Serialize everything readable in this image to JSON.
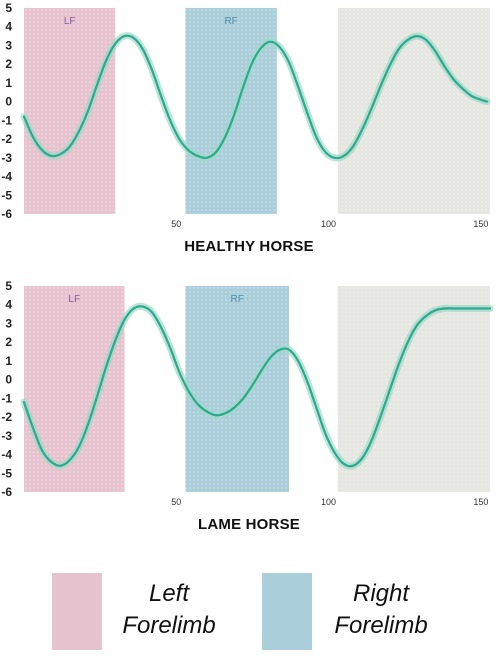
{
  "colors": {
    "left_forelimb": "#e6c3cf",
    "right_forelimb": "#aacfdb",
    "neutral_zone": "#e6e6e2",
    "curve": "#2aaa8e",
    "curve_halo": "#9fd8c6",
    "lf_label": "#8a5a9a",
    "rf_label": "#4f8fa8"
  },
  "chart_data": [
    {
      "type": "line",
      "title": "HEALTHY HORSE",
      "xlim": [
        0,
        153
      ],
      "ylim": [
        -6,
        5
      ],
      "yticks": [
        "5",
        "4",
        "3",
        "2",
        "1",
        "0",
        "-1",
        "-2",
        "-3",
        "-4",
        "-5",
        "-6"
      ],
      "xticks": [
        "50",
        "100",
        "150"
      ],
      "regions": [
        {
          "label": "LF",
          "start": 0,
          "end": 30,
          "color": "left_forelimb"
        },
        {
          "label": "RF",
          "start": 53,
          "end": 83,
          "color": "right_forelimb"
        },
        {
          "label": "",
          "start": 103,
          "end": 153,
          "color": "neutral_zone"
        }
      ],
      "series": [
        {
          "x": [
            0,
            3,
            6,
            9,
            12,
            15,
            18,
            21,
            24,
            27,
            30,
            33,
            36,
            39,
            42,
            45,
            48,
            51,
            54,
            57,
            60,
            63,
            66,
            69,
            72,
            75,
            78,
            81,
            84,
            87,
            90,
            93,
            96,
            99,
            102,
            105,
            108,
            111,
            114,
            117,
            120,
            123,
            126,
            129,
            132,
            135,
            138,
            141,
            144,
            147,
            150,
            152
          ],
          "y": [
            -0.8,
            -1.9,
            -2.6,
            -2.9,
            -2.8,
            -2.4,
            -1.6,
            -0.5,
            0.9,
            2.2,
            3.1,
            3.5,
            3.4,
            2.8,
            1.7,
            0.3,
            -1.0,
            -2.0,
            -2.6,
            -2.9,
            -3.0,
            -2.7,
            -1.9,
            -0.7,
            0.8,
            2.1,
            2.9,
            3.2,
            2.9,
            2.1,
            0.8,
            -0.6,
            -1.9,
            -2.7,
            -3.0,
            -2.9,
            -2.4,
            -1.5,
            -0.4,
            0.8,
            1.9,
            2.8,
            3.3,
            3.5,
            3.3,
            2.7,
            1.9,
            1.2,
            0.7,
            0.3,
            0.1,
            0.0
          ]
        }
      ]
    },
    {
      "type": "line",
      "title": "LAME HORSE",
      "xlim": [
        0,
        153
      ],
      "ylim": [
        -6,
        5
      ],
      "yticks": [
        "5",
        "4",
        "3",
        "2",
        "1",
        "0",
        "-1",
        "-2",
        "-3",
        "-4",
        "-5",
        "-6"
      ],
      "xticks": [
        "50",
        "100",
        "150"
      ],
      "regions": [
        {
          "label": "LF",
          "start": 0,
          "end": 33,
          "color": "left_forelimb"
        },
        {
          "label": "RF",
          "start": 53,
          "end": 87,
          "color": "right_forelimb"
        },
        {
          "label": "",
          "start": 103,
          "end": 153,
          "color": "neutral_zone"
        }
      ],
      "series": [
        {
          "x": [
            0,
            3,
            6,
            9,
            12,
            15,
            18,
            21,
            24,
            27,
            30,
            33,
            36,
            39,
            42,
            45,
            48,
            51,
            54,
            57,
            60,
            63,
            66,
            69,
            72,
            75,
            78,
            81,
            84,
            87,
            90,
            93,
            96,
            99,
            102,
            105,
            108,
            111,
            114,
            117,
            120,
            123,
            126,
            129,
            132,
            135,
            138,
            141,
            144,
            147,
            150,
            153
          ],
          "y": [
            -1.2,
            -2.6,
            -3.8,
            -4.4,
            -4.6,
            -4.3,
            -3.6,
            -2.4,
            -0.9,
            0.7,
            2.1,
            3.2,
            3.8,
            3.9,
            3.6,
            2.8,
            1.7,
            0.4,
            -0.6,
            -1.3,
            -1.7,
            -1.9,
            -1.8,
            -1.5,
            -1.0,
            -0.3,
            0.5,
            1.2,
            1.6,
            1.6,
            1.0,
            -0.1,
            -1.5,
            -2.9,
            -3.9,
            -4.5,
            -4.6,
            -4.2,
            -3.3,
            -2.0,
            -0.6,
            0.8,
            2.0,
            2.9,
            3.4,
            3.7,
            3.8,
            3.8,
            3.8,
            3.8,
            3.8,
            3.8
          ]
        }
      ]
    }
  ],
  "legend": {
    "left": {
      "line1": "Left",
      "line2": "Forelimb"
    },
    "right": {
      "line1": "Right",
      "line2": "Forelimb"
    }
  }
}
